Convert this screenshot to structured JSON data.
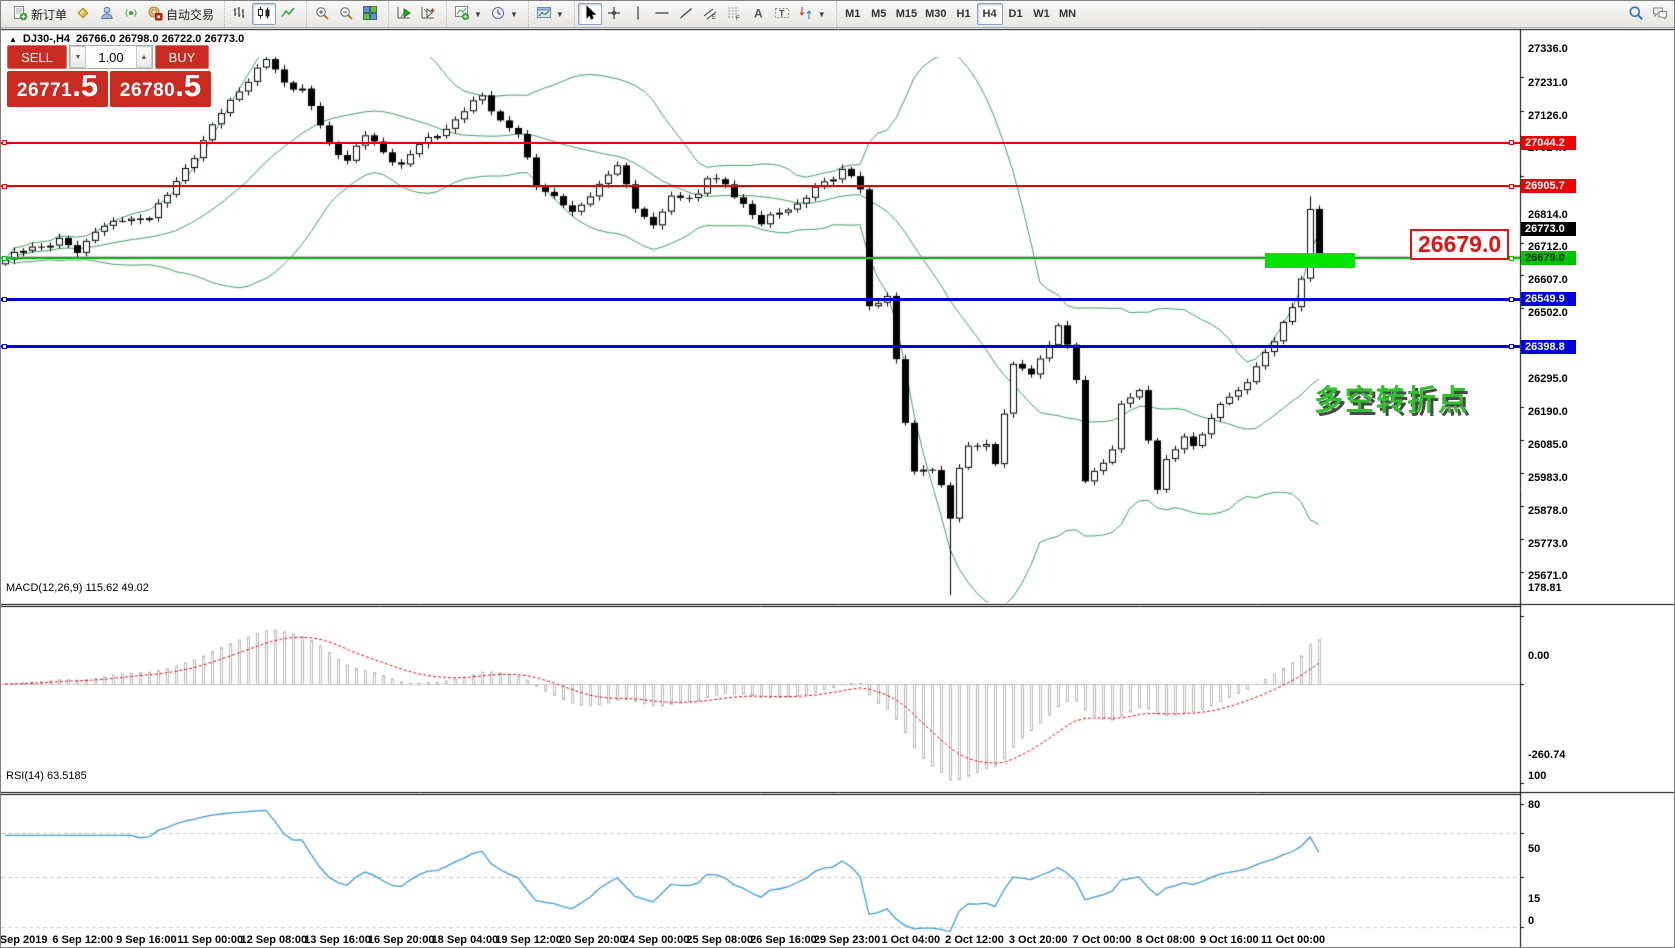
{
  "toolbar": {
    "groups": [
      {
        "items": [
          {
            "id": "new-order-button",
            "icon": "doc-plus",
            "label": "新订单"
          },
          {
            "id": "styler-button",
            "icon": "styler"
          },
          {
            "id": "profile-button",
            "icon": "profile"
          },
          {
            "id": "signals-button",
            "icon": "signal"
          },
          {
            "id": "autotrade-button",
            "icon": "autotrade",
            "label": "自动交易"
          }
        ]
      },
      {
        "items": [
          {
            "id": "bar-chart-button",
            "icon": "bars"
          },
          {
            "id": "candle-chart-button",
            "icon": "candles",
            "active": true
          },
          {
            "id": "line-chart-button",
            "icon": "line"
          }
        ]
      },
      {
        "items": [
          {
            "id": "zoom-in-button",
            "icon": "zoom-in"
          },
          {
            "id": "zoom-out-button",
            "icon": "zoom-out"
          },
          {
            "id": "tile-windows-button",
            "icon": "tile"
          }
        ]
      },
      {
        "items": [
          {
            "id": "auto-scroll-button",
            "icon": "scroll"
          },
          {
            "id": "chart-shift-button",
            "icon": "shift"
          }
        ]
      },
      {
        "items": [
          {
            "id": "indicators-button",
            "icon": "indicators",
            "dropdown": true
          },
          {
            "id": "periods-button",
            "icon": "clock",
            "dropdown": true
          }
        ]
      },
      {
        "items": [
          {
            "id": "templates-button",
            "icon": "template",
            "dropdown": true
          }
        ]
      },
      {
        "items": [
          {
            "id": "cursor-button",
            "icon": "cursor",
            "active": true
          },
          {
            "id": "crosshair-button",
            "icon": "crosshair"
          },
          {
            "id": "vline-button",
            "icon": "vline"
          },
          {
            "id": "hline-button",
            "icon": "hline"
          },
          {
            "id": "trendline-button",
            "icon": "trendline"
          },
          {
            "id": "channel-button",
            "icon": "channel"
          },
          {
            "id": "fibonacci-button",
            "icon": "fibo"
          },
          {
            "id": "text-button",
            "icon": "text"
          },
          {
            "id": "text-label-button",
            "icon": "label"
          },
          {
            "id": "shapes-button",
            "icon": "shapes",
            "dropdown": true
          }
        ]
      }
    ],
    "timeframes": [
      "M1",
      "M5",
      "M15",
      "M30",
      "H1",
      "H4",
      "D1",
      "W1",
      "MN"
    ],
    "active_timeframe": "H4",
    "right_items": [
      {
        "id": "search-button",
        "icon": "search"
      },
      {
        "id": "chat-button",
        "icon": "chat"
      }
    ]
  },
  "chart": {
    "collapse_icon": "▲",
    "symbol": "DJ30-,H4",
    "ohlc": "26766.0 26798.0 26722.0 26773.0"
  },
  "trade_panel": {
    "sell_label": "SELL",
    "buy_label": "BUY",
    "volume": "1.00",
    "spinner_down": "▼",
    "spinner_up": "▲",
    "sell_main": "26771",
    "sell_big": ".5",
    "buy_main": "26780",
    "buy_big": ".5"
  },
  "macd": {
    "label": "MACD(12,26,9)",
    "values": "115.62 49.02",
    "axis": [
      "178.81",
      "0.00",
      "-260.74"
    ]
  },
  "rsi": {
    "label": "RSI(14) 63.5185",
    "axis": [
      "100",
      "80",
      "50",
      "15",
      "0"
    ],
    "grid": [
      80,
      50,
      15
    ]
  },
  "annotation": {
    "text": "多空转折点",
    "price_label": "26679.0"
  },
  "chart_data": {
    "type": "candlestick",
    "symbol": "DJ30-",
    "timeframe": "H4",
    "ohlc_current": {
      "open": 26766.0,
      "high": 26798.0,
      "low": 26722.0,
      "close": 26773.0
    },
    "bid": 26771.5,
    "ask": 26780.5,
    "current_price_badge": "26773.0",
    "price_axis_ticks": [
      27336.0,
      27231.0,
      27126.0,
      27024.0,
      26814.0,
      26712.0,
      26607.0,
      26502.0,
      26295.0,
      26190.0,
      26085.0,
      25983.0,
      25878.0,
      25773.0,
      25671.0
    ],
    "levels": [
      {
        "price": 27044.2,
        "label": "27044.2",
        "color": "#ee0000",
        "thickness": 2,
        "type": "resistance"
      },
      {
        "price": 26905.7,
        "label": "26905.7",
        "color": "#ee0000",
        "thickness": 2,
        "type": "resistance"
      },
      {
        "price": 26679.0,
        "label": "26679.0",
        "color": "#00c400",
        "thickness": 2,
        "type": "pivot",
        "dark_text": true
      },
      {
        "price": 26549.9,
        "label": "26549.9",
        "color": "#0000dd",
        "thickness": 3,
        "type": "support"
      },
      {
        "price": 26398.8,
        "label": "26398.8",
        "color": "#0000dd",
        "thickness": 3,
        "type": "support"
      }
    ],
    "highlight_box": {
      "from_index": 140,
      "to_index": 150,
      "price_top": 26697,
      "price_bottom": 26648,
      "color": "#00e400"
    },
    "time_axis_labels": [
      "5 Sep 2019",
      "6 Sep 12:00",
      "9 Sep 16:00",
      "11 Sep 00:00",
      "12 Sep 08:00",
      "13 Sep 16:00",
      "16 Sep 20:00",
      "18 Sep 04:00",
      "19 Sep 12:00",
      "20 Sep 20:00",
      "24 Sep 00:00",
      "25 Sep 08:00",
      "26 Sep 16:00",
      "29 Sep 23:00",
      "1 Oct 04:00",
      "2 Oct 12:00",
      "3 Oct 20:00",
      "7 Oct 00:00",
      "8 Oct 08:00",
      "9 Oct 16:00",
      "11 Oct 00:00"
    ],
    "candle_count": 147,
    "candle_anchors": [
      [
        0,
        26760
      ],
      [
        3,
        26800
      ],
      [
        6,
        26820
      ],
      [
        8,
        26780
      ],
      [
        10,
        26860
      ],
      [
        13,
        26880
      ],
      [
        16,
        26900
      ],
      [
        18,
        26960
      ],
      [
        20,
        27050
      ],
      [
        23,
        27180
      ],
      [
        26,
        27300
      ],
      [
        29,
        27390
      ],
      [
        31,
        27320
      ],
      [
        33,
        27300
      ],
      [
        36,
        27120
      ],
      [
        38,
        27080
      ],
      [
        40,
        27150
      ],
      [
        42,
        27100
      ],
      [
        44,
        27060
      ],
      [
        46,
        27120
      ],
      [
        48,
        27160
      ],
      [
        50,
        27200
      ],
      [
        53,
        27280
      ],
      [
        55,
        27200
      ],
      [
        57,
        27150
      ],
      [
        59,
        27000
      ],
      [
        61,
        26960
      ],
      [
        63,
        26900
      ],
      [
        65,
        26970
      ],
      [
        67,
        27030
      ],
      [
        68,
        27050
      ],
      [
        70,
        26930
      ],
      [
        72,
        26870
      ],
      [
        74,
        26950
      ],
      [
        77,
        26970
      ],
      [
        78,
        27020
      ],
      [
        80,
        26990
      ],
      [
        82,
        26940
      ],
      [
        84,
        26870
      ],
      [
        86,
        26910
      ],
      [
        88,
        26940
      ],
      [
        90,
        26980
      ],
      [
        92,
        27020
      ],
      [
        93,
        27050
      ],
      [
        94,
        27030
      ],
      [
        95,
        26980
      ],
      [
        96,
        26600
      ],
      [
        98,
        26650
      ],
      [
        99,
        26450
      ],
      [
        100,
        26250
      ],
      [
        101,
        26080
      ],
      [
        103,
        26100
      ],
      [
        104,
        26050
      ],
      [
        105,
        25950
      ],
      [
        106,
        26100
      ],
      [
        107,
        26160
      ],
      [
        109,
        26180
      ],
      [
        110,
        26120
      ],
      [
        111,
        26280
      ],
      [
        112,
        26420
      ],
      [
        114,
        26400
      ],
      [
        116,
        26500
      ],
      [
        117,
        26550
      ],
      [
        118,
        26480
      ],
      [
        119,
        26380
      ],
      [
        120,
        26060
      ],
      [
        121,
        26100
      ],
      [
        123,
        26150
      ],
      [
        124,
        26300
      ],
      [
        126,
        26350
      ],
      [
        127,
        26200
      ],
      [
        128,
        26030
      ],
      [
        129,
        26120
      ],
      [
        131,
        26200
      ],
      [
        132,
        26180
      ],
      [
        134,
        26250
      ],
      [
        135,
        26300
      ],
      [
        137,
        26350
      ],
      [
        139,
        26420
      ],
      [
        141,
        26500
      ],
      [
        143,
        26620
      ],
      [
        144,
        26700
      ],
      [
        145,
        26920
      ],
      [
        146,
        26773
      ]
    ],
    "specials": {
      "29": {
        "high": 27420
      },
      "105": {
        "low": 25700
      },
      "145": {
        "high": 26960
      }
    },
    "indicators": {
      "bollinger_period": 20,
      "bollinger_dev": 2,
      "macd_params": [
        12,
        26,
        9
      ],
      "rsi_period": 14
    },
    "macd_axis": [
      "178.81",
      "0.00",
      "-260.74"
    ],
    "colors": {
      "bands": "#3da06a",
      "macd_hist": "#bdbdbd",
      "macd_signal": "#e01414",
      "rsi_line": "#3f9bd8",
      "bull": "#ffffff",
      "bear": "#000000",
      "grid_dash": "#c8c8c8",
      "bid_line": "#b3b3b3"
    }
  }
}
